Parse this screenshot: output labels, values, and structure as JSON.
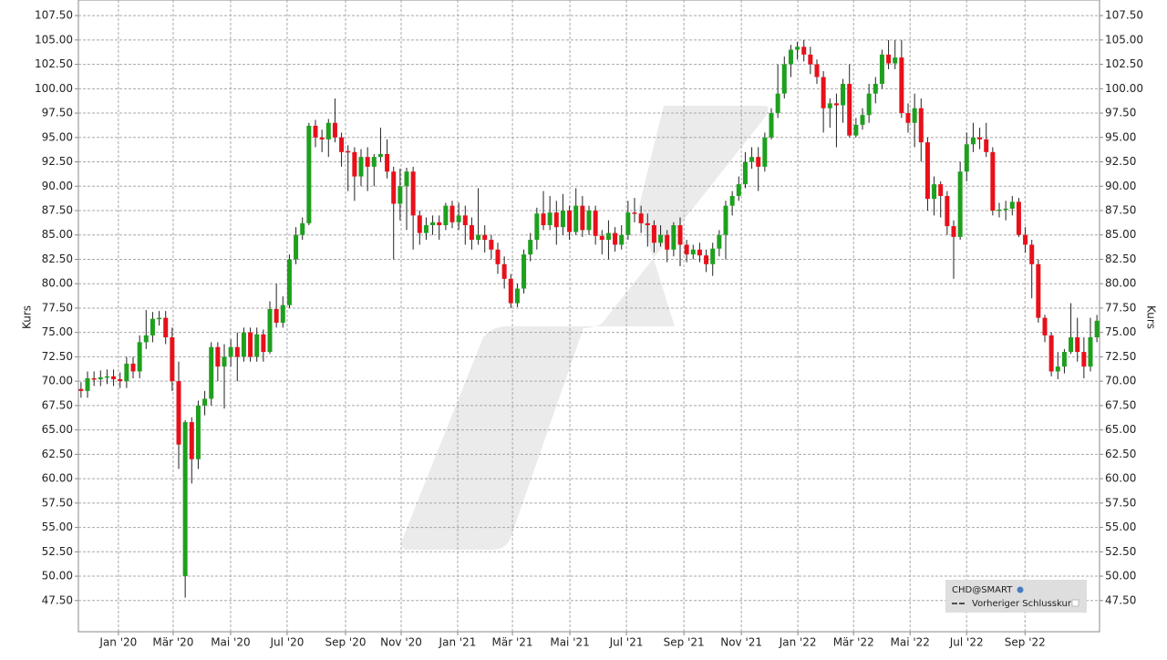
{
  "chart_data": {
    "type": "candlestick",
    "ylabel": "Kurs",
    "up_color": "#1ea01e",
    "down_color": "#e8101a",
    "grid": true,
    "legend": "bottom-right",
    "legend_items": [
      "CHD@SMART",
      "Vorheriger Schlusskurs"
    ],
    "xlim": [
      -0.4,
      156.4
    ],
    "ylim": [
      44.3,
      109.1
    ],
    "xticks": [
      {
        "value": 5.74,
        "label": "Jan '20"
      },
      {
        "value": 14.15,
        "label": "Mär '20"
      },
      {
        "value": 22.97,
        "label": "Mai '20"
      },
      {
        "value": 31.65,
        "label": "Jul '20"
      },
      {
        "value": 40.62,
        "label": "Sep '20"
      },
      {
        "value": 49.16,
        "label": "Nov '20"
      },
      {
        "value": 57.84,
        "label": "Jan '21"
      },
      {
        "value": 66.25,
        "label": "Mär '21"
      },
      {
        "value": 75.07,
        "label": "Mai '21"
      },
      {
        "value": 83.75,
        "label": "Jul '21"
      },
      {
        "value": 92.58,
        "label": "Sep '21"
      },
      {
        "value": 101.4,
        "label": "Nov '21"
      },
      {
        "value": 110.08,
        "label": "Jan '22"
      },
      {
        "value": 118.63,
        "label": "Mär '22"
      },
      {
        "value": 127.31,
        "label": "Mai '22"
      },
      {
        "value": 135.99,
        "label": "Jul '22"
      },
      {
        "value": 144.96,
        "label": "Sep '22"
      }
    ],
    "yticks": [
      {
        "value": 47.5,
        "label": "47.50"
      },
      {
        "value": 50,
        "label": "50.00"
      },
      {
        "value": 52.5,
        "label": "52.50"
      },
      {
        "value": 55,
        "label": "55.00"
      },
      {
        "value": 57.5,
        "label": "57.50"
      },
      {
        "value": 60,
        "label": "60.00"
      },
      {
        "value": 62.5,
        "label": "62.50"
      },
      {
        "value": 65,
        "label": "65.00"
      },
      {
        "value": 67.5,
        "label": "67.50"
      },
      {
        "value": 70,
        "label": "70.00"
      },
      {
        "value": 72.5,
        "label": "72.50"
      },
      {
        "value": 75,
        "label": "75.00"
      },
      {
        "value": 77.5,
        "label": "77.50"
      },
      {
        "value": 80,
        "label": "80.00"
      },
      {
        "value": 82.5,
        "label": "82.50"
      },
      {
        "value": 85,
        "label": "85.00"
      },
      {
        "value": 87.5,
        "label": "87.50"
      },
      {
        "value": 90,
        "label": "90.00"
      },
      {
        "value": 92.5,
        "label": "92.50"
      },
      {
        "value": 95,
        "label": "95.00"
      },
      {
        "value": 97.5,
        "label": "97.50"
      },
      {
        "value": 100,
        "label": "100.00"
      },
      {
        "value": 102.5,
        "label": "102.50"
      },
      {
        "value": 105,
        "label": "105.00"
      },
      {
        "value": 107.5,
        "label": "107.50"
      }
    ],
    "candles": [
      [
        69.2,
        69.9,
        68.3,
        69
      ],
      [
        69,
        71,
        68.3,
        70.3
      ],
      [
        70.3,
        71,
        69.5,
        70.2
      ],
      [
        70.2,
        71.1,
        69.5,
        70.4
      ],
      [
        70.4,
        71.2,
        69.7,
        70.5
      ],
      [
        70.5,
        71.2,
        69.5,
        70.2
      ],
      [
        70.2,
        70.9,
        69.3,
        70
      ],
      [
        70,
        72.5,
        69.3,
        71.8
      ],
      [
        71.8,
        72.5,
        70.3,
        71
      ],
      [
        71,
        74.7,
        70.3,
        74
      ],
      [
        74,
        77.3,
        73.3,
        74.7
      ],
      [
        74.7,
        77.1,
        74,
        76.4
      ],
      [
        76.4,
        77.2,
        75.7,
        76.5
      ],
      [
        76.5,
        77.2,
        73.8,
        74.5
      ],
      [
        74.5,
        75.5,
        69,
        70
      ],
      [
        70,
        72,
        61,
        63.5
      ],
      [
        50,
        66,
        47.8,
        65.8
      ],
      [
        65.8,
        66.3,
        59.5,
        62
      ],
      [
        62,
        68,
        61,
        67.5
      ],
      [
        67.5,
        69,
        66.5,
        68.2
      ],
      [
        68.2,
        74,
        67.5,
        73.5
      ],
      [
        73.5,
        74,
        70,
        71.5
      ],
      [
        71.5,
        73.8,
        67.2,
        72.5
      ],
      [
        72.5,
        74.3,
        71.5,
        73.5
      ],
      [
        73.5,
        75,
        70,
        72.5
      ],
      [
        72.5,
        75.5,
        72,
        75
      ],
      [
        75,
        75.5,
        72,
        72.5
      ],
      [
        72.5,
        75.5,
        72,
        74.8
      ],
      [
        74.8,
        75.3,
        72,
        73
      ],
      [
        73,
        78.2,
        72.8,
        77.4
      ],
      [
        77.4,
        80,
        75.5,
        76
      ],
      [
        76,
        78.7,
        75.5,
        77.8
      ],
      [
        77.8,
        83,
        77.5,
        82.5
      ],
      [
        82.5,
        85.8,
        82,
        85
      ],
      [
        85,
        86.8,
        84.5,
        86.2
      ],
      [
        86.2,
        96.5,
        86,
        96.2
      ],
      [
        96.2,
        96.8,
        94,
        95
      ],
      [
        95,
        95.8,
        93.5,
        94.8
      ],
      [
        94.8,
        96.9,
        93,
        96.5
      ],
      [
        96.5,
        99,
        94.5,
        95
      ],
      [
        95,
        95.5,
        92,
        93.5
      ],
      [
        93.6,
        94.2,
        89.5,
        93.5
      ],
      [
        93.5,
        94,
        88.5,
        91
      ],
      [
        91,
        93.8,
        90,
        93
      ],
      [
        93,
        94,
        89.5,
        92
      ],
      [
        92,
        93.3,
        90,
        93
      ],
      [
        93,
        96,
        92.5,
        93.3
      ],
      [
        93.3,
        94.8,
        90.8,
        91.5
      ],
      [
        91.5,
        92,
        82.5,
        88.2
      ],
      [
        88.2,
        91.8,
        86.5,
        90
      ],
      [
        90,
        91.9,
        85.5,
        91.5
      ],
      [
        91.5,
        92,
        83.5,
        87
      ],
      [
        87,
        87.5,
        84,
        85.2
      ],
      [
        85.2,
        86.8,
        84.5,
        86
      ],
      [
        86,
        87,
        85,
        86.3
      ],
      [
        86.3,
        87,
        84.5,
        86
      ],
      [
        86,
        88.3,
        85.5,
        88
      ],
      [
        88,
        88.5,
        85.7,
        86.3
      ],
      [
        86.3,
        88.3,
        85.5,
        87
      ],
      [
        87,
        88,
        84,
        86
      ],
      [
        86,
        86.8,
        83.5,
        84.5
      ],
      [
        84.5,
        89.8,
        84,
        85
      ],
      [
        85,
        86,
        83.2,
        84.5
      ],
      [
        84.5,
        85,
        82.5,
        83.5
      ],
      [
        83.5,
        84.2,
        81,
        82
      ],
      [
        82,
        82.8,
        79.5,
        80.5
      ],
      [
        80.5,
        81,
        77.5,
        78
      ],
      [
        78,
        80,
        77.6,
        79.5
      ],
      [
        79.5,
        83.5,
        79,
        83
      ],
      [
        83,
        85.2,
        82.3,
        84.5
      ],
      [
        84.5,
        87.8,
        83.5,
        87.2
      ],
      [
        87.2,
        89.5,
        85.5,
        86
      ],
      [
        86,
        89,
        85.5,
        87.3
      ],
      [
        87.3,
        88.5,
        84,
        85.8
      ],
      [
        85.8,
        89.2,
        85,
        87.5
      ],
      [
        87.5,
        88,
        84.5,
        85.3
      ],
      [
        85.3,
        89.8,
        85,
        88
      ],
      [
        88,
        89,
        84.8,
        85.5
      ],
      [
        85.5,
        88,
        85,
        87.5
      ],
      [
        87.5,
        88,
        84,
        84.9
      ],
      [
        84.9,
        85.5,
        83,
        84.5
      ],
      [
        84.5,
        86.5,
        82.5,
        85.2
      ],
      [
        85.2,
        85.8,
        83.3,
        84
      ],
      [
        84,
        86,
        83.5,
        85
      ],
      [
        85,
        88.5,
        84.5,
        87.3
      ],
      [
        87.3,
        88.8,
        86.3,
        87.2
      ],
      [
        87.2,
        88,
        85.2,
        86.2
      ],
      [
        86.2,
        87.2,
        83.8,
        86
      ],
      [
        86,
        86.5,
        83.2,
        84.2
      ],
      [
        84.2,
        86,
        83.8,
        85
      ],
      [
        85,
        85.5,
        82.2,
        83.5
      ],
      [
        83.5,
        86.3,
        82.8,
        86
      ],
      [
        86,
        86.8,
        81.8,
        84
      ],
      [
        84,
        84.5,
        82.2,
        83
      ],
      [
        83,
        84,
        82.5,
        83.5
      ],
      [
        83.5,
        84.2,
        82.2,
        82.9
      ],
      [
        82.9,
        83.5,
        81.2,
        82
      ],
      [
        82,
        84.2,
        80.8,
        83.6
      ],
      [
        83.6,
        85.5,
        82.8,
        85
      ],
      [
        85,
        88.5,
        82.5,
        88
      ],
      [
        88,
        89.5,
        87,
        89
      ],
      [
        89,
        91,
        88.5,
        90.2
      ],
      [
        90.2,
        93.5,
        89.8,
        92.5
      ],
      [
        92.5,
        94,
        91.8,
        93
      ],
      [
        93,
        94,
        89.5,
        92
      ],
      [
        92,
        95.5,
        91.5,
        95
      ],
      [
        95,
        98,
        94.8,
        97.5
      ],
      [
        97.5,
        102.5,
        97,
        99.5
      ],
      [
        99.5,
        103.3,
        99,
        102.5
      ],
      [
        102.5,
        104.5,
        101.2,
        104
      ],
      [
        104,
        104.8,
        103,
        104.3
      ],
      [
        104.3,
        105,
        102.8,
        103.5
      ],
      [
        103.5,
        104.3,
        101.5,
        102.5
      ],
      [
        102.5,
        103,
        100.5,
        101.2
      ],
      [
        101.2,
        101.8,
        95.5,
        98
      ],
      [
        98,
        99,
        96,
        98.5
      ],
      [
        98.5,
        99.5,
        94,
        98.3
      ],
      [
        98.3,
        101,
        96.5,
        100.5
      ],
      [
        100.5,
        102.5,
        95,
        95.2
      ],
      [
        95.2,
        97,
        95,
        96.3
      ],
      [
        96.3,
        98,
        95.8,
        97.3
      ],
      [
        97.3,
        100.5,
        96.5,
        99.5
      ],
      [
        99.5,
        101.2,
        98.5,
        100.5
      ],
      [
        100.5,
        104,
        100,
        103.5
      ],
      [
        103.5,
        105,
        102,
        102.6
      ],
      [
        102.6,
        105,
        102,
        103.2
      ],
      [
        103.2,
        105,
        97,
        97.5
      ],
      [
        97.5,
        98.5,
        95.5,
        96.5
      ],
      [
        96.5,
        99.5,
        94,
        98
      ],
      [
        98,
        99,
        92.5,
        94.5
      ],
      [
        94.5,
        95,
        87.5,
        88.7
      ],
      [
        88.7,
        91,
        87,
        90.2
      ],
      [
        90.2,
        90.5,
        86.8,
        89
      ],
      [
        89,
        89.5,
        85,
        85.9
      ],
      [
        85.9,
        86.5,
        80.5,
        84.8
      ],
      [
        84.8,
        92.5,
        84.5,
        91.5
      ],
      [
        91.5,
        95.5,
        90.5,
        94.3
      ],
      [
        94.3,
        96.5,
        93.5,
        95
      ],
      [
        95,
        96,
        93.8,
        94.8
      ],
      [
        94.8,
        96.5,
        93,
        93.5
      ],
      [
        93.5,
        94,
        87,
        87.5
      ],
      [
        87.5,
        88.3,
        86.8,
        87.6
      ],
      [
        87.6,
        88.5,
        86.5,
        87.7
      ],
      [
        87.7,
        89,
        87,
        88.4
      ],
      [
        88.4,
        88.8,
        84.8,
        85
      ],
      [
        85,
        85.8,
        83.2,
        84
      ],
      [
        84,
        84.5,
        78.5,
        82
      ],
      [
        82,
        82.5,
        76,
        76.5
      ],
      [
        76.5,
        76.8,
        74,
        74.7
      ],
      [
        74.7,
        75,
        70.5,
        71
      ],
      [
        71,
        73,
        70.2,
        71.5
      ],
      [
        71.5,
        73.3,
        70.8,
        73
      ],
      [
        73,
        78,
        72.8,
        74.5
      ],
      [
        74.5,
        76.5,
        72,
        73
      ],
      [
        73,
        74.5,
        70.3,
        71.5
      ],
      [
        71.5,
        76.5,
        71,
        74.5
      ],
      [
        74.5,
        76.8,
        74,
        76.2
      ]
    ]
  }
}
